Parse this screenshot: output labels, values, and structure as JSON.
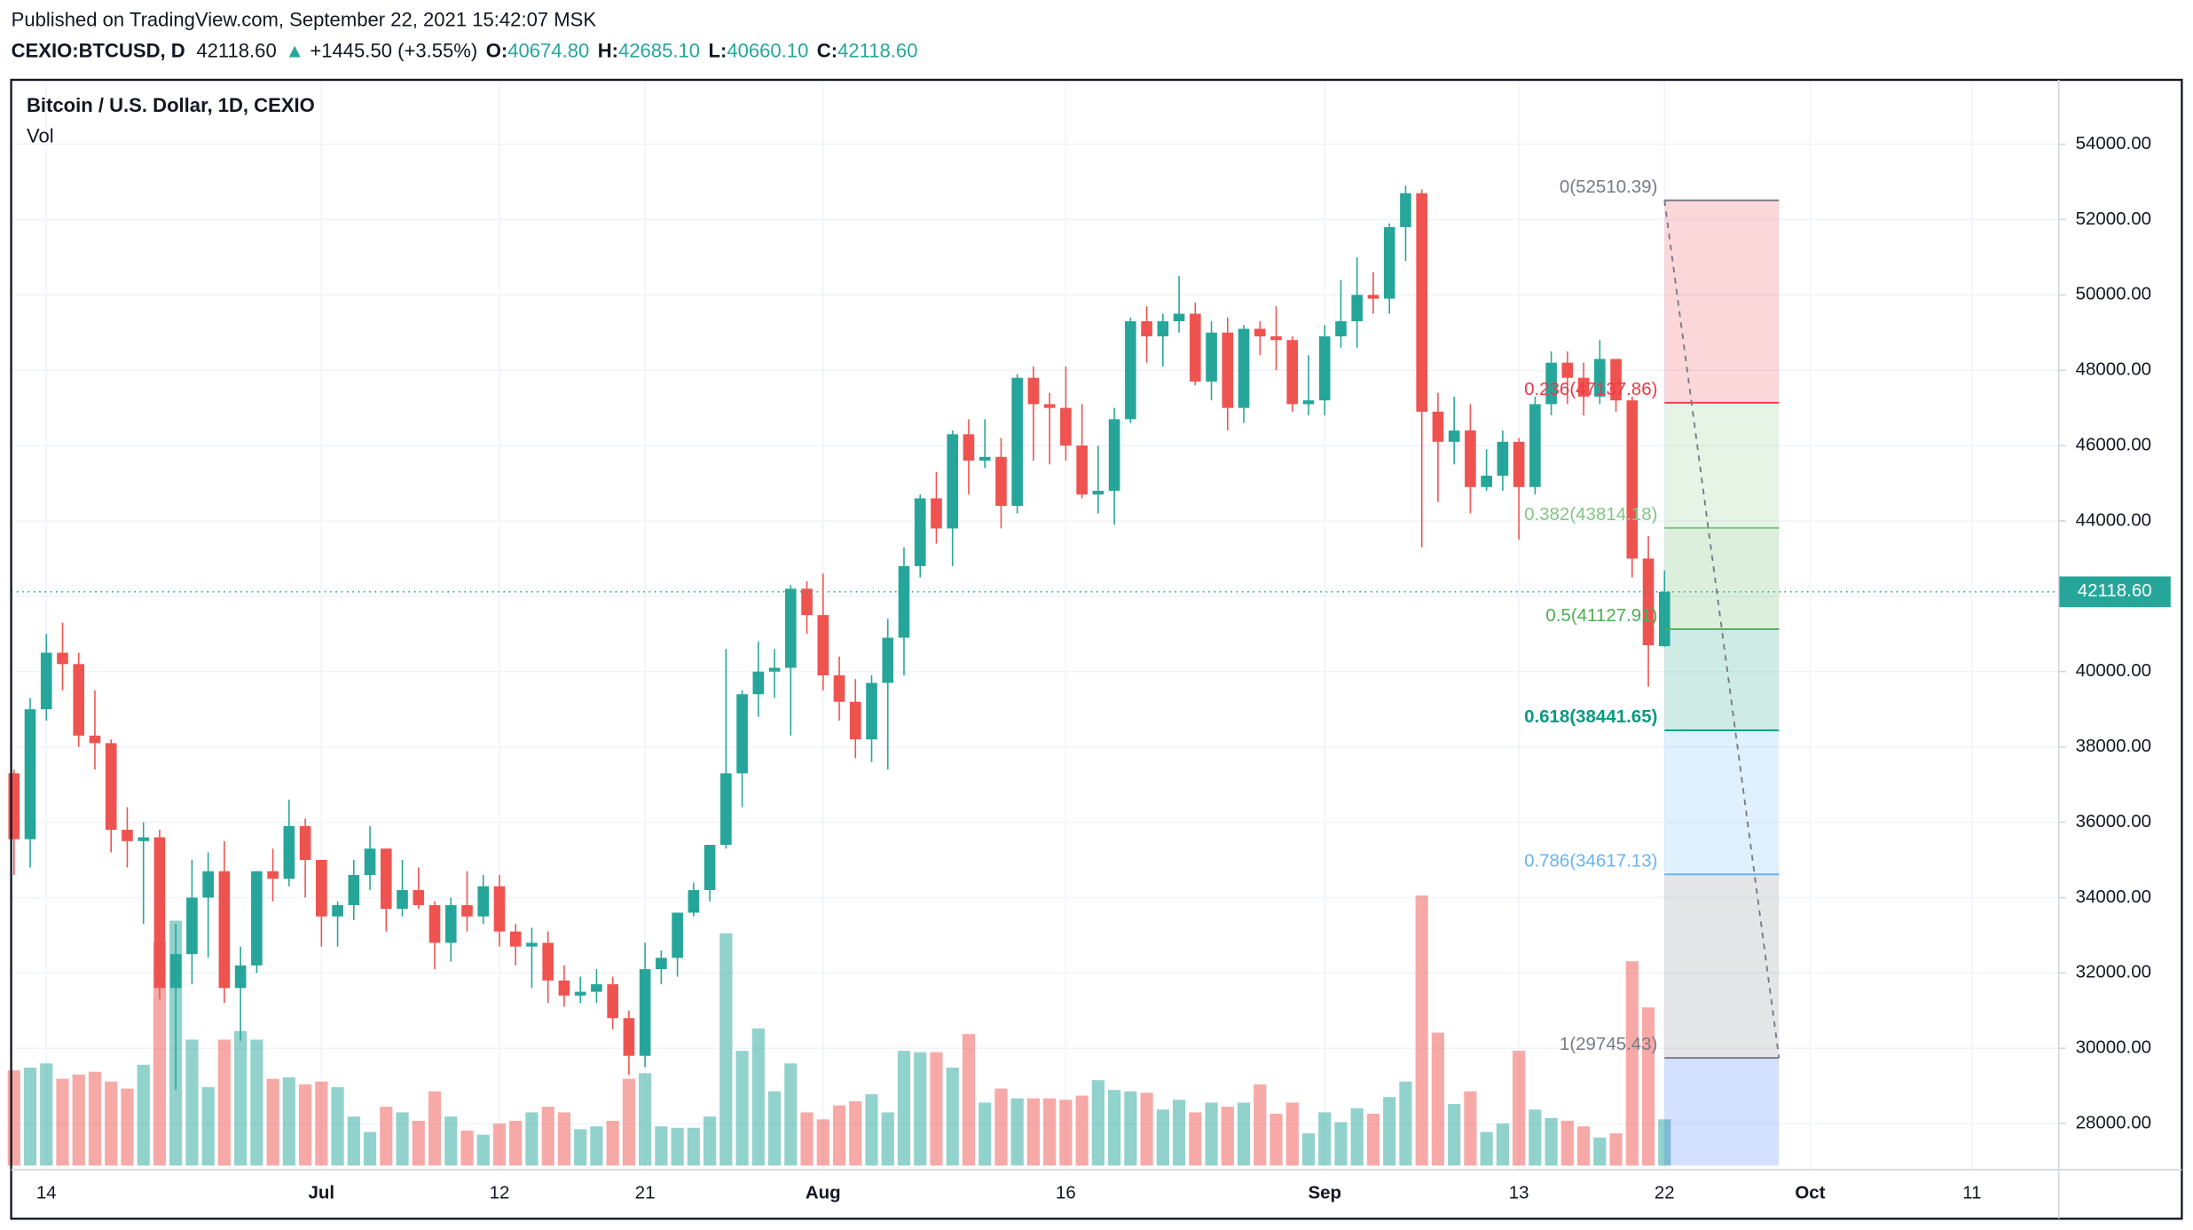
{
  "header": {
    "published": "Published on TradingView.com, September 22, 2021 15:42:07 MSK",
    "symbol": "CEXIO:BTCUSD, D",
    "last": "42118.60",
    "arrow": "▲",
    "change": "+1445.50 (+3.55%)",
    "o_label": "O:",
    "o": "40674.80",
    "h_label": "H:",
    "h": "42685.10",
    "l_label": "L:",
    "l": "40660.10",
    "c_label": "C:",
    "c": "42118.60"
  },
  "chart_data": {
    "type": "candlestick",
    "title": "Bitcoin / U.S. Dollar, 1D, CEXIO",
    "volume_label": "Vol",
    "categories": [
      null,
      null,
      "14",
      null,
      null,
      null,
      null,
      null,
      null,
      null,
      null,
      null,
      null,
      null,
      null,
      null,
      null,
      null,
      null,
      "Jul",
      null,
      null,
      null,
      null,
      null,
      null,
      null,
      null,
      null,
      null,
      "12",
      null,
      null,
      null,
      null,
      null,
      null,
      null,
      null,
      "21",
      null,
      null,
      null,
      null,
      null,
      null,
      null,
      null,
      null,
      null,
      "Aug",
      null,
      null,
      null,
      null,
      null,
      null,
      null,
      null,
      null,
      null,
      null,
      null,
      null,
      null,
      "16",
      null,
      null,
      null,
      null,
      null,
      null,
      null,
      null,
      null,
      null,
      null,
      null,
      null,
      null,
      null,
      "Sep",
      null,
      null,
      null,
      null,
      null,
      null,
      null,
      null,
      null,
      null,
      null,
      "13",
      null,
      null,
      null,
      null,
      null,
      null,
      null,
      null,
      "22",
      null,
      null,
      null,
      null,
      null,
      null,
      null,
      null,
      "Oct",
      null,
      null,
      null,
      null,
      null,
      null,
      null,
      null,
      null,
      "11",
      null,
      null
    ],
    "open": [
      37300,
      35550,
      39000,
      40500,
      40200,
      38300,
      38100,
      35800,
      35500,
      35600,
      31600,
      32500,
      34000,
      34700,
      31600,
      32200,
      34700,
      34500,
      35900,
      35000,
      33500,
      33800,
      34600,
      35300,
      33700,
      34200,
      33800,
      32800,
      33800,
      33500,
      34300,
      33100,
      32700,
      32800,
      31800,
      31400,
      31500,
      31700,
      30800,
      29800,
      32100,
      32400,
      33600,
      34200,
      35400,
      37300,
      39400,
      40000,
      40100,
      42200,
      41500,
      39900,
      39200,
      38200,
      39700,
      40900,
      42800,
      44600,
      43800,
      46300,
      45600,
      45700,
      44400,
      47800,
      47100,
      47000,
      46000,
      44700,
      44800,
      46700,
      49300,
      48900,
      49300,
      49500,
      47700,
      49000,
      47000,
      49100,
      48900,
      48800,
      47100,
      47200,
      48900,
      49300,
      50000,
      49900,
      51800,
      52700,
      46900,
      46100,
      46400,
      44900,
      45200,
      46100,
      44900,
      47100,
      48200,
      47800,
      47300,
      48300,
      47200,
      43000,
      40674.8,
      null,
      null,
      null,
      null,
      null,
      null,
      null,
      null,
      null,
      null,
      null,
      null,
      null,
      null,
      null,
      null,
      null,
      null,
      null,
      null,
      null
    ],
    "high": [
      37400,
      39300,
      41000,
      41300,
      40500,
      39500,
      38200,
      36400,
      36000,
      35800,
      33300,
      35000,
      35200,
      35500,
      32700,
      34700,
      35300,
      36600,
      36100,
      35000,
      33900,
      35000,
      35900,
      35300,
      35000,
      34800,
      33900,
      34000,
      34700,
      34600,
      34600,
      33300,
      33200,
      33100,
      32200,
      31900,
      32100,
      31900,
      31000,
      32800,
      32600,
      33600,
      34400,
      35400,
      40600,
      39500,
      40800,
      40600,
      42300,
      42400,
      42600,
      40400,
      39800,
      39900,
      41400,
      43300,
      44700,
      45300,
      46400,
      46700,
      46700,
      46200,
      47900,
      48100,
      47400,
      48100,
      47100,
      46000,
      47000,
      49400,
      49700,
      49500,
      50500,
      49800,
      49300,
      49400,
      49200,
      49300,
      49700,
      48900,
      48400,
      49200,
      50400,
      51000,
      50600,
      51900,
      52900,
      52800,
      47400,
      47300,
      47100,
      45900,
      46400,
      46200,
      47300,
      48500,
      48500,
      48200,
      48800,
      48300,
      47300,
      43600,
      42685.1,
      null,
      null,
      null,
      null,
      null,
      null,
      null,
      null,
      null,
      null,
      null,
      null,
      null,
      null,
      null,
      null,
      null,
      null,
      null,
      null,
      null
    ],
    "low": [
      34600,
      34800,
      38700,
      39500,
      38000,
      37400,
      35200,
      34800,
      33300,
      31300,
      28900,
      31700,
      32400,
      31200,
      30200,
      32000,
      33900,
      34300,
      34000,
      32700,
      32700,
      33400,
      34200,
      33100,
      33500,
      33700,
      32100,
      32300,
      33100,
      33300,
      32700,
      32200,
      31600,
      31200,
      31100,
      31200,
      31200,
      30500,
      29300,
      29500,
      31700,
      31900,
      33500,
      33900,
      35300,
      36400,
      38800,
      39300,
      38300,
      41000,
      39500,
      38700,
      37700,
      37600,
      37400,
      39900,
      42500,
      43400,
      42800,
      44700,
      45400,
      43800,
      44200,
      45600,
      45500,
      45600,
      44600,
      44200,
      43900,
      46600,
      48200,
      48100,
      49000,
      47600,
      47200,
      46400,
      46600,
      48400,
      48000,
      46900,
      46800,
      46800,
      48600,
      48600,
      49500,
      49500,
      50900,
      43300,
      44500,
      45500,
      44200,
      44800,
      44800,
      43500,
      44700,
      46800,
      47100,
      46800,
      47100,
      46900,
      42500,
      39600,
      40660.1,
      null,
      null,
      null,
      null,
      null,
      null,
      null,
      null,
      null,
      null,
      null,
      null,
      null,
      null,
      null,
      null,
      null,
      null,
      null,
      null,
      null
    ],
    "close": [
      35550,
      39000,
      40500,
      40200,
      38300,
      38100,
      35800,
      35500,
      35600,
      31600,
      32500,
      34000,
      34700,
      31600,
      32200,
      34700,
      34500,
      35900,
      35000,
      33500,
      33800,
      34600,
      35300,
      33700,
      34200,
      33800,
      32800,
      33800,
      33500,
      34300,
      33100,
      32700,
      32800,
      31800,
      31400,
      31500,
      31700,
      30800,
      29800,
      32100,
      32400,
      33600,
      34200,
      35400,
      37300,
      39400,
      40000,
      40100,
      42200,
      41500,
      39900,
      39200,
      38200,
      39700,
      40900,
      42800,
      44600,
      43800,
      46300,
      45600,
      45700,
      44400,
      47800,
      47100,
      47000,
      46000,
      44700,
      44800,
      46700,
      49300,
      48900,
      49300,
      49500,
      47700,
      49000,
      47000,
      49100,
      48900,
      48800,
      47100,
      47200,
      48900,
      49300,
      50000,
      49900,
      51800,
      52700,
      46900,
      46100,
      46400,
      44900,
      45200,
      46100,
      44900,
      47100,
      48200,
      47800,
      47300,
      48300,
      47200,
      43000,
      40700,
      42118.6,
      null,
      null,
      null,
      null,
      null,
      null,
      null,
      null,
      null,
      null,
      null,
      null,
      null,
      null,
      null,
      null,
      null,
      null,
      null,
      null,
      null
    ],
    "volume": [
      68,
      70,
      73,
      62,
      65,
      67,
      60,
      55,
      72,
      160,
      175,
      90,
      56,
      90,
      96,
      90,
      62,
      63,
      58,
      60,
      56,
      35,
      24,
      42,
      38,
      32,
      53,
      35,
      25,
      22,
      30,
      32,
      38,
      42,
      38,
      26,
      28,
      32,
      62,
      66,
      28,
      27,
      27,
      35,
      166,
      82,
      98,
      53,
      73,
      38,
      33,
      43,
      46,
      51,
      38,
      82,
      81,
      81,
      70,
      94,
      45,
      55,
      48,
      48,
      48,
      47,
      50,
      61,
      54,
      53,
      52,
      40,
      47,
      38,
      45,
      42,
      45,
      58,
      37,
      45,
      23,
      38,
      31,
      41,
      37,
      49,
      60,
      193,
      95,
      44,
      53,
      24,
      30,
      82,
      40,
      34,
      32,
      28,
      20,
      23,
      146,
      113,
      33,
      null,
      null,
      null,
      null,
      null,
      null,
      null,
      null,
      null,
      null,
      null,
      null,
      null,
      null,
      null,
      null,
      null,
      null,
      null,
      null,
      null
    ],
    "up_color": "#26a69a",
    "down_color": "#ef5350",
    "ylim": [
      26887,
      55709
    ],
    "yticks": [
      {
        "value": 28000,
        "label": "28000.00"
      },
      {
        "value": 30000,
        "label": "30000.00"
      },
      {
        "value": 32000,
        "label": "32000.00"
      },
      {
        "value": 34000,
        "label": "34000.00"
      },
      {
        "value": 36000,
        "label": "36000.00"
      },
      {
        "value": 38000,
        "label": "38000.00"
      },
      {
        "value": 40000,
        "label": "40000.00"
      },
      {
        "value": 42000,
        "label": "42000.00"
      },
      {
        "value": 44000,
        "label": "44000.00"
      },
      {
        "value": 46000,
        "label": "46000.00"
      },
      {
        "value": 48000,
        "label": "48000.00"
      },
      {
        "value": 50000,
        "label": "50000.00"
      },
      {
        "value": 52000,
        "label": "52000.00"
      },
      {
        "value": 54000,
        "label": "54000.00"
      }
    ],
    "grid": true,
    "fib": {
      "levels": [
        {
          "value": 52510.39,
          "label": "0(52510.39)"
        },
        {
          "value": 47137.86,
          "label": "0.236(47137.86)"
        },
        {
          "value": 43814.18,
          "label": "0.382(43814.18)"
        },
        {
          "value": 41127.91,
          "label": "0.5(41127.91)"
        },
        {
          "value": 38441.65,
          "label": "0.618(38441.65)"
        },
        {
          "value": 34617.13,
          "label": "0.786(34617.13)"
        },
        {
          "value": 29745.43,
          "label": "1(29745.43)"
        }
      ],
      "line_colors": [
        "#787b86",
        "#f23645",
        "#81c784",
        "#4caf50",
        "#089981",
        "#64b5f6",
        "#787b86"
      ],
      "zone_colors": [
        "rgba(242,54,69,0.2)",
        "rgba(129,199,132,0.2)",
        "rgba(76,175,80,0.2)",
        "rgba(8,153,129,0.2)",
        "rgba(100,181,246,0.2)",
        "rgba(120,123,134,0.2)",
        "rgba(41,98,255,0.2)"
      ]
    }
  }
}
